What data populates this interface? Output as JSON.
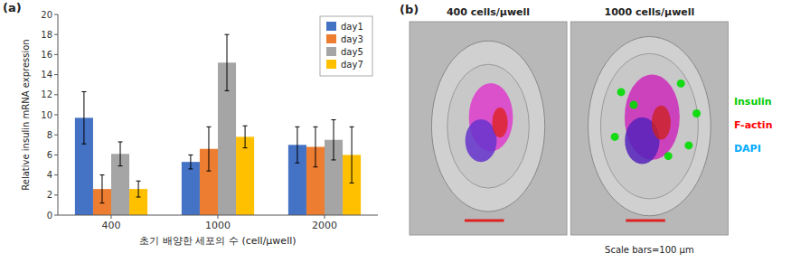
{
  "chart_data": {
    "type": "bar",
    "categories": [
      "400",
      "1000",
      "2000"
    ],
    "series": [
      {
        "name": "day1",
        "color": "#4472C4",
        "values": [
          9.7,
          5.3,
          7.0
        ],
        "errors": [
          2.6,
          0.7,
          1.8
        ]
      },
      {
        "name": "day3",
        "color": "#ED7D31",
        "values": [
          2.6,
          6.6,
          6.8
        ],
        "errors": [
          1.4,
          2.2,
          2.0
        ]
      },
      {
        "name": "day5",
        "color": "#A5A5A5",
        "values": [
          6.1,
          15.2,
          7.5
        ],
        "errors": [
          1.2,
          2.8,
          2.0
        ]
      },
      {
        "name": "day7",
        "color": "#FFC000",
        "values": [
          2.6,
          7.8,
          6.0
        ],
        "errors": [
          0.8,
          1.1,
          2.8
        ]
      }
    ],
    "xlabel": "초기 배양한 세포의 수 (cell/μwell)",
    "ylabel": "Relative insulin mRNA expression",
    "ylim": [
      0,
      20
    ],
    "yticks": [
      0,
      2,
      4,
      6,
      8,
      10,
      12,
      14,
      16,
      18,
      20
    ],
    "legend": "upper right",
    "grid": false,
    "annotations": [
      {
        "text": "(a)"
      },
      {
        "text": "(b)"
      },
      {
        "text": "400 cells/μwell"
      },
      {
        "text": "1000 cells/μwell"
      },
      {
        "text": "Insulin",
        "color": "#00CC00"
      },
      {
        "text": "F-actin",
        "color": "#FF0000"
      },
      {
        "text": "DAPI",
        "color": "#00AAFF"
      },
      {
        "text": "Scale bars=100 μm"
      }
    ]
  }
}
